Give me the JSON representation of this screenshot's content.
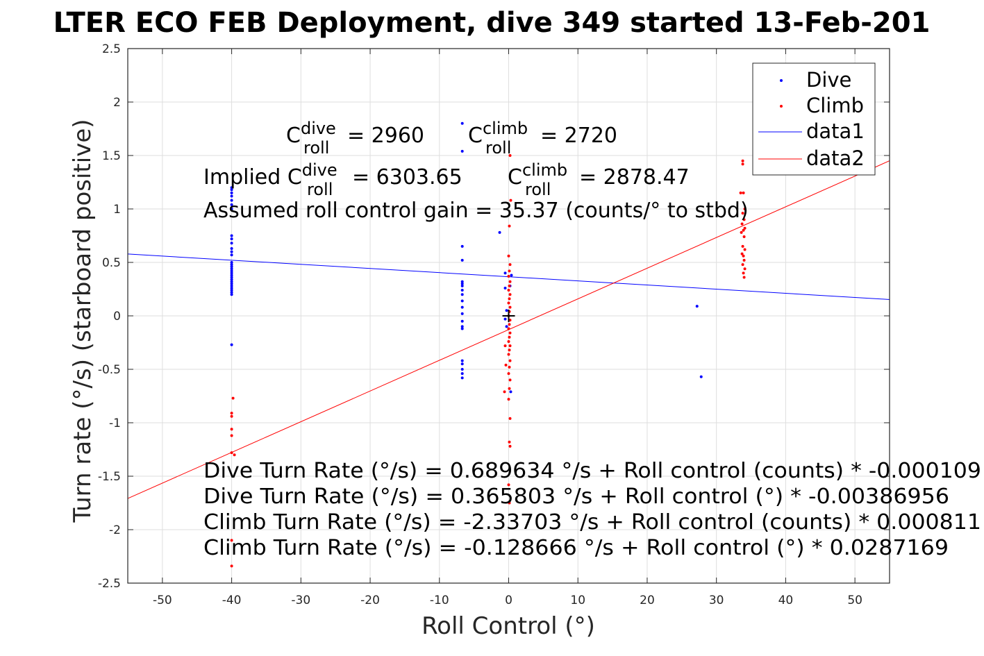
{
  "chart_data": {
    "type": "scatter",
    "title": "LTER ECO FEB Deployment, dive 349 started 13-Feb-201",
    "xlabel": "Roll Control (°)",
    "ylabel": "Turn rate (°/s) (starboard positive)",
    "xlim": [
      -55,
      55
    ],
    "ylim": [
      -2.5,
      2.5
    ],
    "xticks": [
      -50,
      -40,
      -30,
      -20,
      -10,
      0,
      10,
      20,
      30,
      40,
      50
    ],
    "yticks": [
      -2.5,
      -2,
      -1.5,
      -1,
      -0.5,
      0,
      0.5,
      1,
      1.5,
      2,
      2.5
    ],
    "grid": true,
    "legend_position": "top-right",
    "legend": [
      "Dive",
      "Climb",
      "data1",
      "data2"
    ],
    "series": [
      {
        "name": "Dive",
        "kind": "points",
        "color": "#0000ff",
        "points": [
          [
            -40,
            1.2
          ],
          [
            -40,
            1.18
          ],
          [
            -40,
            1.15
          ],
          [
            -40,
            1.12
          ],
          [
            -40,
            1.08
          ],
          [
            -40,
            1.04
          ],
          [
            -40,
            1.0
          ],
          [
            -40,
            0.75
          ],
          [
            -40,
            0.72
          ],
          [
            -40,
            0.68
          ],
          [
            -40,
            0.63
          ],
          [
            -40,
            0.6
          ],
          [
            -40,
            0.57
          ],
          [
            -40,
            0.5
          ],
          [
            -40,
            0.48
          ],
          [
            -40,
            0.46
          ],
          [
            -40,
            0.44
          ],
          [
            -40,
            0.42
          ],
          [
            -40,
            0.4
          ],
          [
            -40,
            0.38
          ],
          [
            -40,
            0.36
          ],
          [
            -40,
            0.34
          ],
          [
            -40,
            0.32
          ],
          [
            -40,
            0.3
          ],
          [
            -40,
            0.28
          ],
          [
            -40,
            0.26
          ],
          [
            -40,
            0.24
          ],
          [
            -40,
            0.22
          ],
          [
            -40,
            0.2
          ],
          [
            -40,
            -0.27
          ],
          [
            -6.7,
            1.8
          ],
          [
            -6.7,
            1.54
          ],
          [
            -6.7,
            0.65
          ],
          [
            -6.7,
            0.52
          ],
          [
            -6.7,
            0.32
          ],
          [
            -6.7,
            0.3
          ],
          [
            -6.7,
            0.28
          ],
          [
            -6.7,
            0.24
          ],
          [
            -6.7,
            0.2
          ],
          [
            -6.7,
            0.14
          ],
          [
            -6.7,
            0.08
          ],
          [
            -6.7,
            0.02
          ],
          [
            -6.7,
            -0.05
          ],
          [
            -6.7,
            -0.1
          ],
          [
            -6.7,
            -0.12
          ],
          [
            -6.7,
            -0.42
          ],
          [
            -6.7,
            -0.45
          ],
          [
            -6.7,
            -0.5
          ],
          [
            -6.7,
            -0.54
          ],
          [
            -6.7,
            -0.58
          ],
          [
            -1.3,
            0.78
          ],
          [
            -0.5,
            0.4
          ],
          [
            -0.5,
            0.26
          ],
          [
            -0.3,
            0.05
          ],
          [
            -0.5,
            -0.03
          ],
          [
            -0.3,
            -0.1
          ],
          [
            0.3,
            -0.71
          ],
          [
            0.4,
            0.38
          ],
          [
            0.2,
            0.28
          ],
          [
            27.2,
            0.09
          ],
          [
            27.8,
            -0.57
          ]
        ]
      },
      {
        "name": "Climb",
        "kind": "points",
        "color": "#ff0000",
        "points": [
          [
            0.2,
            1.5
          ],
          [
            0.3,
            1.08
          ],
          [
            0.1,
            0.84
          ],
          [
            0.0,
            0.56
          ],
          [
            0.2,
            0.48
          ],
          [
            0.1,
            0.42
          ],
          [
            0.0,
            0.37
          ],
          [
            0.2,
            0.32
          ],
          [
            0.1,
            0.28
          ],
          [
            0.0,
            0.24
          ],
          [
            0.2,
            0.2
          ],
          [
            0.1,
            0.16
          ],
          [
            0.0,
            0.12
          ],
          [
            0.2,
            0.08
          ],
          [
            0.1,
            0.04
          ],
          [
            0.0,
            0.0
          ],
          [
            0.2,
            -0.04
          ],
          [
            0.1,
            -0.08
          ],
          [
            0.0,
            -0.12
          ],
          [
            0.2,
            -0.16
          ],
          [
            0.1,
            -0.2
          ],
          [
            0.0,
            -0.24
          ],
          [
            0.2,
            -0.28
          ],
          [
            0.1,
            -0.32
          ],
          [
            0.0,
            -0.36
          ],
          [
            0.2,
            -0.42
          ],
          [
            0.1,
            -0.48
          ],
          [
            0.0,
            -0.54
          ],
          [
            0.2,
            -0.6
          ],
          [
            0.1,
            -0.68
          ],
          [
            0.0,
            -0.78
          ],
          [
            0.2,
            -0.96
          ],
          [
            0.1,
            -1.18
          ],
          [
            0.2,
            -1.22
          ],
          [
            0.0,
            -1.58
          ],
          [
            0.1,
            -1.75
          ],
          [
            -0.5,
            -0.28
          ],
          [
            -0.4,
            -0.46
          ],
          [
            -0.6,
            -0.71
          ],
          [
            -39.8,
            -0.77
          ],
          [
            -40,
            -0.91
          ],
          [
            -40,
            -0.94
          ],
          [
            -40,
            -1.06
          ],
          [
            -40,
            -1.12
          ],
          [
            -40,
            -1.28
          ],
          [
            -39.6,
            -1.3
          ],
          [
            -40,
            -2.1
          ],
          [
            -40,
            -2.34
          ],
          [
            33.8,
            1.45
          ],
          [
            33.8,
            1.42
          ],
          [
            33.5,
            1.15
          ],
          [
            33.9,
            1.15
          ],
          [
            34.1,
            1.0
          ],
          [
            33.8,
            0.96
          ],
          [
            34.0,
            0.9
          ],
          [
            33.7,
            0.86
          ],
          [
            34.1,
            0.82
          ],
          [
            33.9,
            0.8
          ],
          [
            33.6,
            0.78
          ],
          [
            34.0,
            0.74
          ],
          [
            33.8,
            0.65
          ],
          [
            34.1,
            0.62
          ],
          [
            33.7,
            0.58
          ],
          [
            33.9,
            0.56
          ],
          [
            34.0,
            0.52
          ],
          [
            33.8,
            0.48
          ],
          [
            34.1,
            0.44
          ],
          [
            33.9,
            0.4
          ],
          [
            34.0,
            0.36
          ]
        ]
      },
      {
        "name": "data1",
        "kind": "line",
        "color": "#0000ff",
        "intercept": 0.365803,
        "slope": -0.00386956
      },
      {
        "name": "data2",
        "kind": "line",
        "color": "#ff0000",
        "intercept": -0.128666,
        "slope": 0.0287169
      }
    ],
    "marker": {
      "x": 0,
      "y": 0,
      "symbol": "+"
    },
    "annotations": {
      "c_dive_label": "C",
      "c_dive_sup": "dive",
      "c_dive_sub": "roll",
      "c_dive_value": "= 2960",
      "c_climb_label": "C",
      "c_climb_sup": "climb",
      "c_climb_sub": "roll",
      "c_climb_value": "= 2720",
      "implied_prefix": "Implied C",
      "implied_sup": "dive",
      "implied_sub": "roll",
      "implied_value": "= 6303.65",
      "implied_climb_label": "C",
      "implied_climb_sup": "climb",
      "implied_climb_sub": "roll",
      "implied_climb_value": "= 2878.47",
      "gain": "Assumed roll control gain = 35.37 (counts/° to stbd)",
      "equations": [
        "Dive Turn Rate (°/s) = 0.689634 °/s + Roll control (counts) * -0.000109",
        "Dive Turn Rate (°/s) = 0.365803 °/s + Roll control (°) * -0.00386956",
        "Climb Turn Rate (°/s) = -2.33703 °/s + Roll control (counts) * 0.000811",
        "Climb Turn Rate (°/s) = -0.128666 °/s + Roll control (°) * 0.0287169"
      ]
    }
  }
}
